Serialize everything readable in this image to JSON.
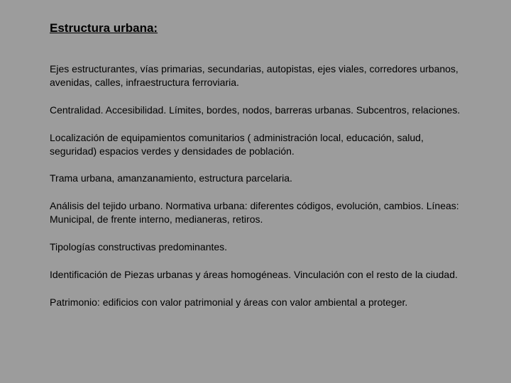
{
  "background_color": "#9c9c9c",
  "text_color": "#000000",
  "title": {
    "text": "Estructura urbana:",
    "fontsize": 17,
    "font_weight": "bold",
    "underline": true
  },
  "body_fontsize": 14,
  "paragraphs": [
    "Ejes estructurantes, vías primarias, secundarias, autopistas, ejes viales, corredores urbanos, avenidas, calles, infraestructura ferroviaria.",
    "Centralidad. Accesibilidad. Límites, bordes, nodos, barreras urbanas. Subcentros, relaciones.",
    "Localización de equipamientos comunitarios ( administración local, educación, salud, seguridad) espacios verdes y densidades de población.",
    "Trama urbana, amanzanamiento, estructura parcelaria.",
    "Análisis del tejido urbano. Normativa urbana: diferentes códigos, evolución, cambios. Líneas: Municipal, de frente interno, medianeras, retiros.",
    "Tipologías constructivas predominantes.",
    "Identificación de Piezas urbanas y áreas homogéneas. Vinculación con el resto de la ciudad.",
    "Patrimonio: edificios con valor patrimonial y áreas con valor ambiental a proteger."
  ]
}
